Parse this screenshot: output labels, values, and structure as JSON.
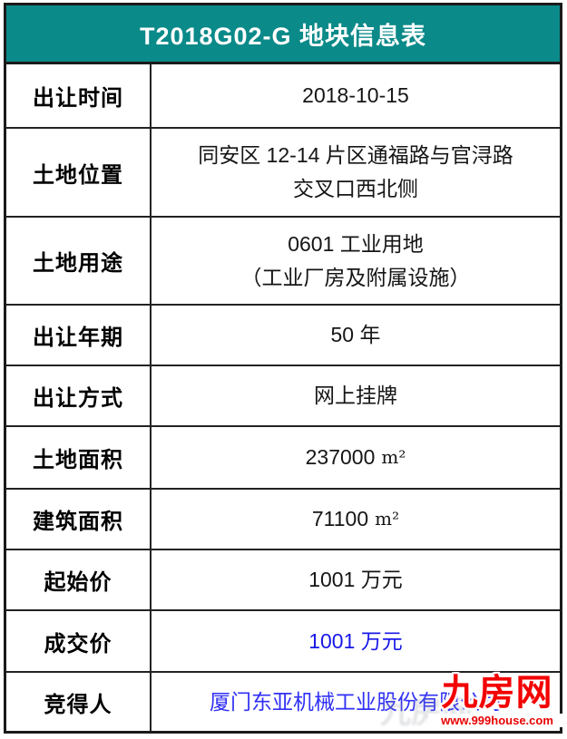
{
  "title": "T2018G02-G 地块信息表",
  "colors": {
    "header_bg": "#0a8a89",
    "header_text": "#ffffff",
    "border": "#1a1a1a",
    "label_text": "#000000",
    "value_text": "#151515",
    "deal_price_blue": "#1818e8",
    "winner_blue": "#3030f5",
    "logo_red": "#f30000"
  },
  "rows": [
    {
      "label": "出让时间",
      "value": "2018-10-15"
    },
    {
      "label": "土地位置",
      "value": "同安区 12-14 片区通福路与官浔路\n交叉口西北侧"
    },
    {
      "label": "土地用途",
      "value": "0601 工业用地\n（工业厂房及附属设施）"
    },
    {
      "label": "出让年期",
      "value": "50 年"
    },
    {
      "label": "出让方式",
      "value": "网上挂牌"
    },
    {
      "label": "土地面积",
      "value": "237000",
      "unit": "m²"
    },
    {
      "label": "建筑面积",
      "value": "71100",
      "unit": "m²"
    },
    {
      "label": "起始价",
      "value": "1001 万元"
    },
    {
      "label": "成交价",
      "value": "1001 万元"
    },
    {
      "label": "竞得人",
      "value": "厦门东亚机械工业股份有限公司"
    }
  ],
  "logo": {
    "text": "九房网",
    "url": "www.999house.com"
  }
}
